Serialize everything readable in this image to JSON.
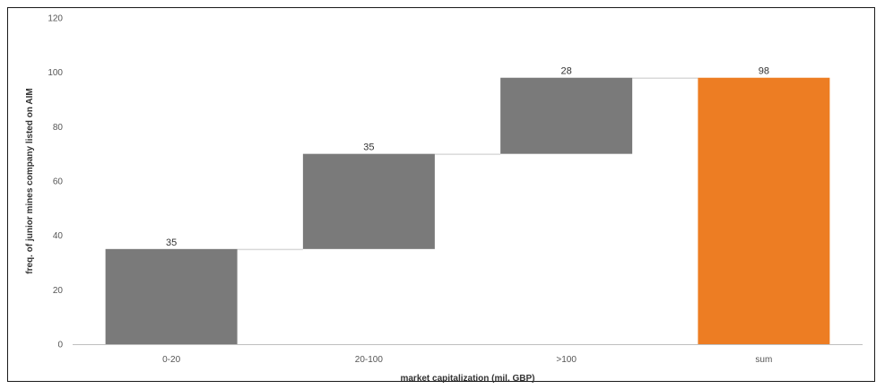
{
  "chart_data": {
    "type": "bar",
    "subtype": "waterfall",
    "categories": [
      "0-20",
      "20-100",
      ">100",
      "sum"
    ],
    "values": [
      35,
      35,
      28,
      98
    ],
    "data_labels": [
      "35",
      "35",
      "28",
      "98"
    ],
    "xlabel": "market capitalization (mil. GBP)",
    "ylabel": "freq. of junior mines company listed on AIM",
    "ylim": [
      0,
      120
    ],
    "yticks": [
      "0",
      "20",
      "40",
      "60",
      "80",
      "100",
      "120"
    ],
    "grid": false,
    "legend": "none",
    "colors": {
      "step": "#7a7a7a",
      "total": "#ed7d23",
      "connector": "#d9d9d9",
      "axis": "#bfbfbf"
    }
  }
}
